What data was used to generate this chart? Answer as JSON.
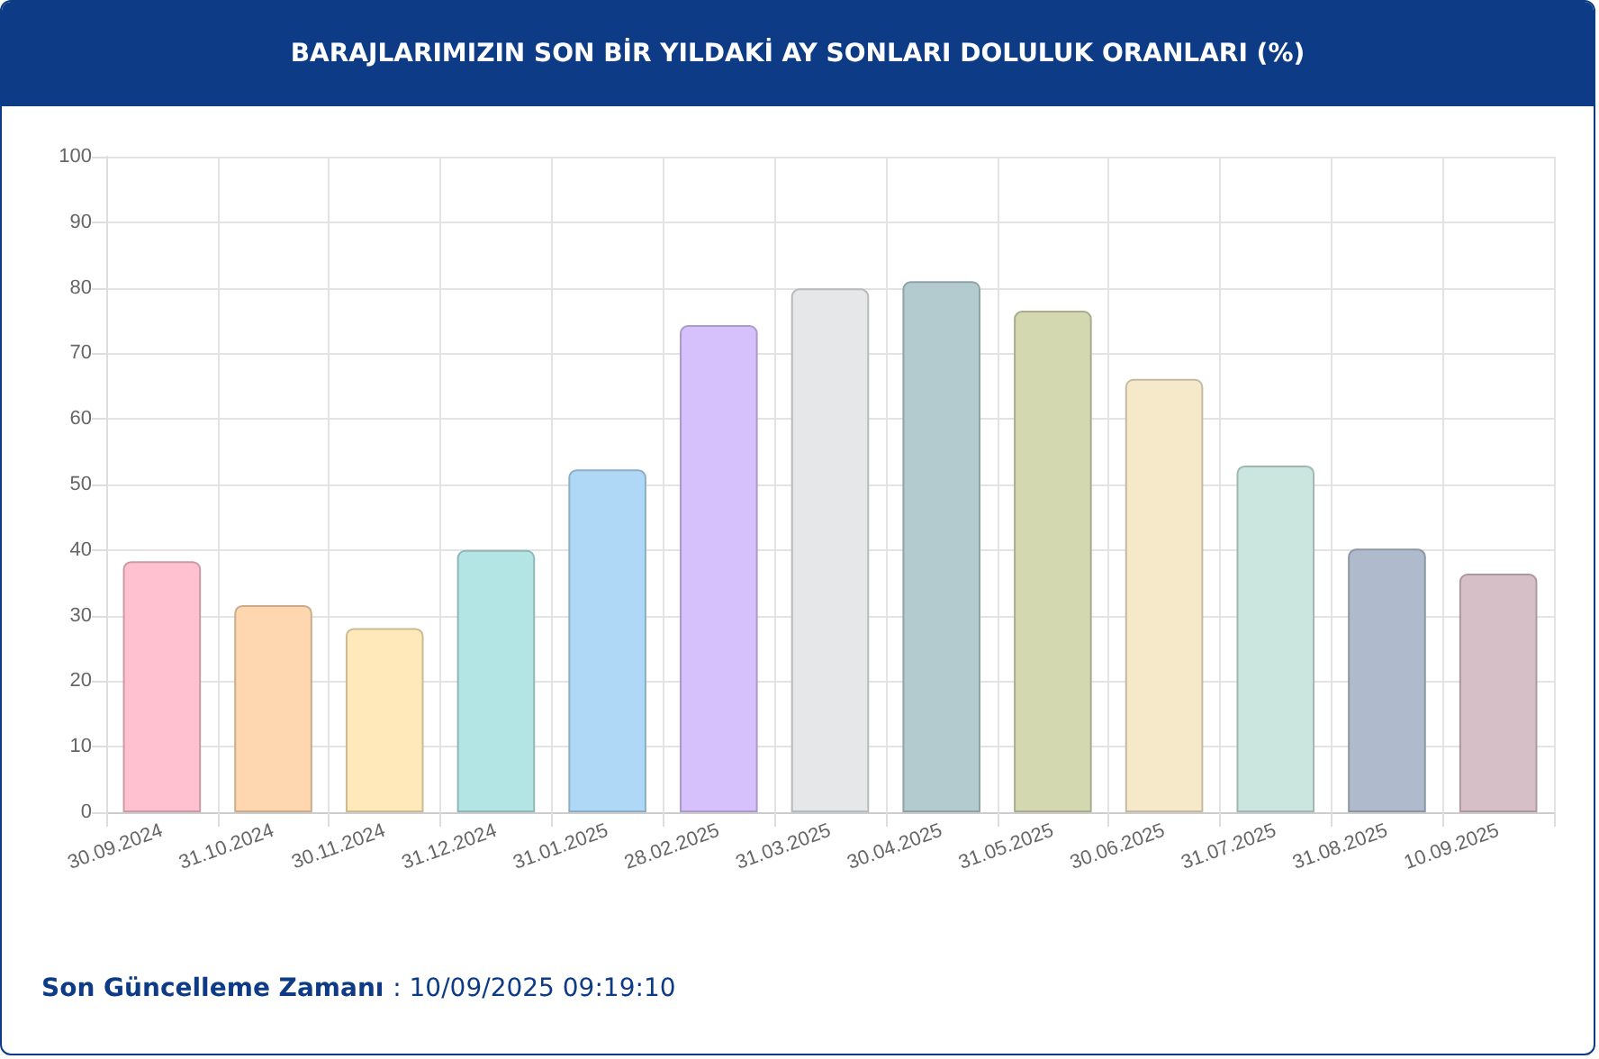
{
  "chart_data": {
    "type": "bar",
    "title": "BARAJLARIMIZIN SON BİR YILDAKİ AY SONLARI DOLULUK ORANLARI (%)",
    "categories": [
      "30.09.2024",
      "31.10.2024",
      "30.11.2024",
      "31.12.2024",
      "31.01.2025",
      "28.02.2025",
      "31.03.2025",
      "30.04.2025",
      "31.05.2025",
      "30.06.2025",
      "31.07.2025",
      "31.08.2025",
      "10.09.2025"
    ],
    "values": [
      38.3,
      31.6,
      28.1,
      40.0,
      52.3,
      74.3,
      79.9,
      81.0,
      76.5,
      66.1,
      52.9,
      40.2,
      36.4
    ],
    "colors": [
      "#ffc0cf",
      "#fed6b0",
      "#ffe8b9",
      "#b4e5e5",
      "#afd8f7",
      "#d6c1fd",
      "#e6e7e9",
      "#b3cacf",
      "#d3d8b0",
      "#f6e9c9",
      "#cbe5df",
      "#afbbcd",
      "#d6bfc6"
    ],
    "ylim": [
      0,
      100
    ],
    "yticks": [
      0,
      10,
      20,
      30,
      40,
      50,
      60,
      70,
      80,
      90,
      100
    ],
    "grid": true,
    "annotations": [
      "Son Güncelleme Zamanı : 10/09/2025 09:19:10"
    ]
  }
}
